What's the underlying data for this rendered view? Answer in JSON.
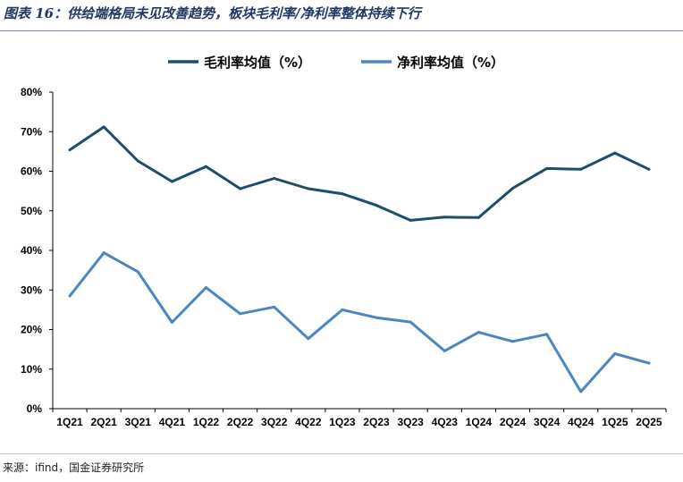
{
  "header": {
    "title": "图表 16：供给端格局未见改善趋势，板块毛利率/净利率整体持续下行"
  },
  "footer": {
    "source": "来源：ifind，国金证券研究所"
  },
  "chart_data": {
    "type": "line",
    "title": "",
    "xlabel": "",
    "ylabel": "",
    "categories": [
      "1Q21",
      "2Q21",
      "3Q21",
      "4Q21",
      "1Q22",
      "2Q22",
      "3Q22",
      "4Q22",
      "1Q23",
      "2Q23",
      "3Q23",
      "4Q23",
      "1Q24",
      "2Q24",
      "3Q24",
      "4Q24",
      "1Q25",
      "2Q25"
    ],
    "ylim": [
      0,
      80
    ],
    "yticks": [
      "0%",
      "10%",
      "20%",
      "30%",
      "40%",
      "50%",
      "60%",
      "70%",
      "80%"
    ],
    "grid": false,
    "legend_position": "top-center",
    "series": [
      {
        "name": "毛利率均值（%）",
        "color": "#1b4e6b",
        "values": [
          65.4,
          71.2,
          62.6,
          57.4,
          61.2,
          55.6,
          58.2,
          55.6,
          54.3,
          51.4,
          47.6,
          48.4,
          48.3,
          55.7,
          60.7,
          60.5,
          64.6,
          60.5
        ]
      },
      {
        "name": "净利率均值（%）",
        "color": "#4a87c0",
        "values": [
          28.5,
          39.4,
          34.6,
          21.8,
          30.6,
          24.0,
          25.7,
          17.7,
          25.0,
          23.0,
          21.9,
          14.6,
          19.3,
          17.0,
          18.8,
          4.3,
          13.9,
          11.5
        ]
      }
    ]
  }
}
